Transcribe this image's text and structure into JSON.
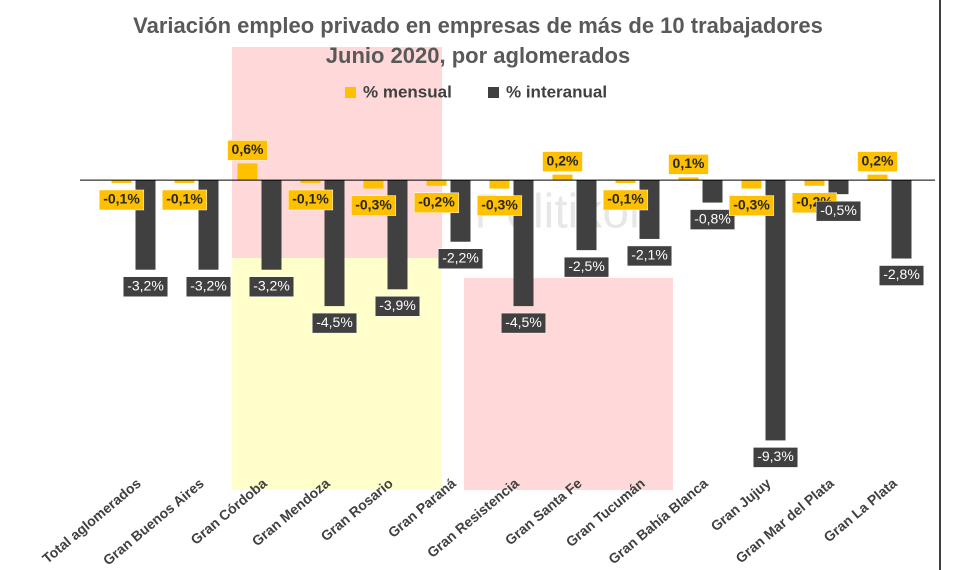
{
  "chart_data": {
    "type": "bar",
    "title": "Variación empleo privado en empresas de más de 10 trabajadores",
    "subtitle": "Junio 2020, por aglomerados",
    "watermark": "Politikon",
    "categories": [
      "Total aglomerados",
      "Gran Buenos Aires",
      "Gran Córdoba",
      "Gran Mendoza",
      "Gran Rosario",
      "Gran Paraná",
      "Gran Resistencia",
      "Gran Santa Fe",
      "Gran Tucumán",
      "Gran Bahía Blanca",
      "Gran Jujuy",
      "Gran Mar del Plata",
      "Gran La Plata"
    ],
    "series": [
      {
        "name": "% mensual",
        "color": "#FFC000",
        "values": [
          -0.1,
          -0.1,
          0.6,
          -0.1,
          -0.3,
          -0.2,
          -0.3,
          0.2,
          -0.1,
          0.1,
          -0.3,
          -0.2,
          0.2
        ],
        "value_labels": [
          "-0,1%",
          "-0,1%",
          "0,6%",
          "-0,1%",
          "-0,3%",
          "-0,2%",
          "-0,3%",
          "0,2%",
          "-0,1%",
          "0,1%",
          "-0,3%",
          "-0,2%",
          "0,2%"
        ]
      },
      {
        "name": "% interanual",
        "color": "#404040",
        "values": [
          -3.2,
          -3.2,
          -3.2,
          -4.5,
          -3.9,
          -2.2,
          -4.5,
          -2.5,
          -2.1,
          -0.8,
          -9.3,
          -0.5,
          -2.8
        ],
        "value_labels": [
          "-3,2%",
          "-3,2%",
          "-3,2%",
          "-4,5%",
          "-3,9%",
          "-2,2%",
          "-4,5%",
          "-2,5%",
          "-2,1%",
          "-0,8%",
          "-9,3%",
          "-0,5%",
          "-2,8%"
        ]
      }
    ],
    "ylim": [
      -9.5,
      0.9
    ],
    "legend": "top"
  }
}
